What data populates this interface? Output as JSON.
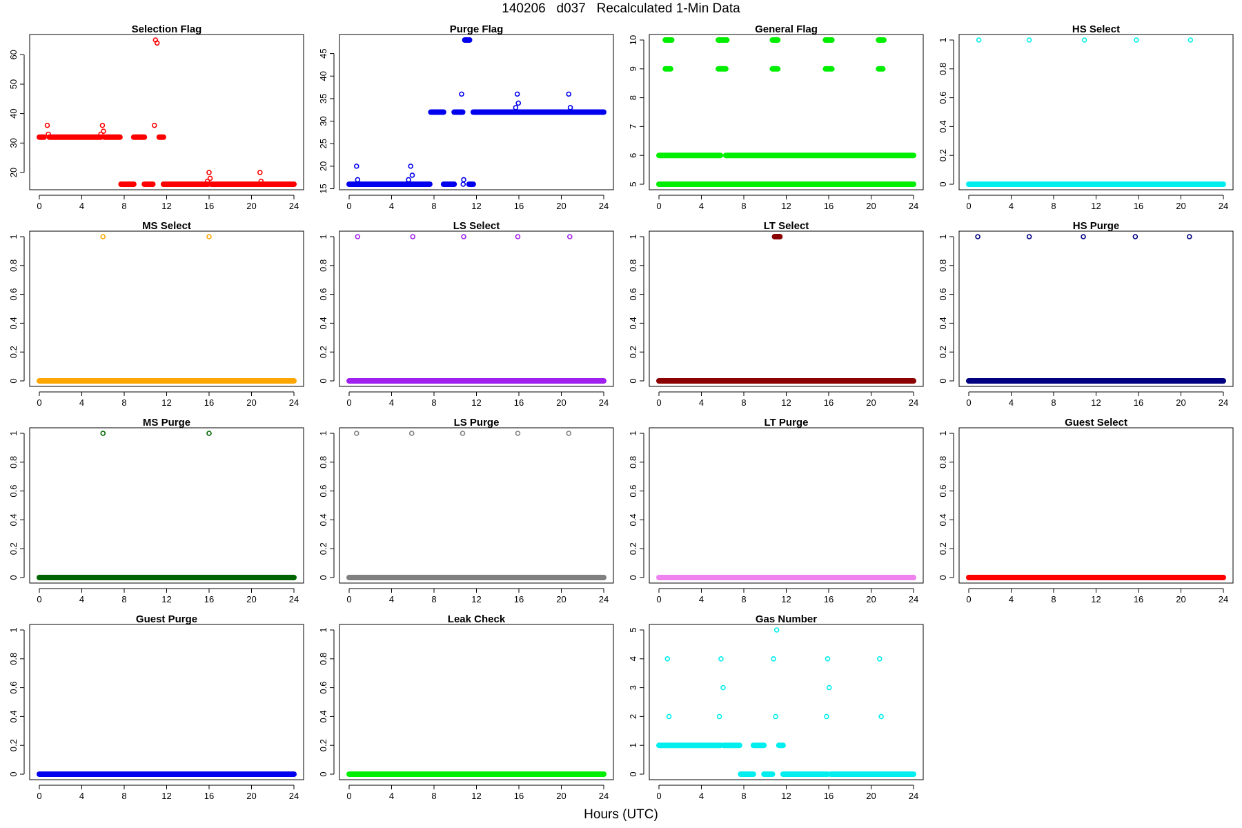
{
  "figure": {
    "title": "140206   d037   Recalculated 1-Min Data",
    "xlabel": "Hours (UTC)"
  },
  "chart_data": [
    {
      "type": "scatter",
      "title": "Selection Flag",
      "color": "#ff0000",
      "xlim": [
        0,
        24
      ],
      "ylim": [
        16,
        65
      ],
      "xticks": [
        0,
        4,
        8,
        12,
        16,
        20,
        24
      ],
      "yticks": [
        20,
        30,
        40,
        50,
        60
      ],
      "segments": [
        {
          "x": [
            0,
            0.45
          ],
          "y": 32
        },
        {
          "x": [
            0.95,
            5.8
          ],
          "y": 32
        },
        {
          "x": [
            6.15,
            7.6
          ],
          "y": 32
        },
        {
          "x": [
            7.7,
            8.9
          ],
          "y": 16
        },
        {
          "x": [
            8.9,
            9.9
          ],
          "y": 32
        },
        {
          "x": [
            9.9,
            10.7
          ],
          "y": 16
        },
        {
          "x": [
            11.3,
            11.7
          ],
          "y": 32
        },
        {
          "x": [
            11.7,
            15.9
          ],
          "y": 16
        },
        {
          "x": [
            16.2,
            24
          ],
          "y": 16
        }
      ],
      "points": [
        {
          "x": 0.75,
          "y": 36
        },
        {
          "x": 0.85,
          "y": 33
        },
        {
          "x": 5.8,
          "y": 33
        },
        {
          "x": 5.95,
          "y": 36
        },
        {
          "x": 6.05,
          "y": 34
        },
        {
          "x": 10.85,
          "y": 36
        },
        {
          "x": 10.95,
          "y": 65
        },
        {
          "x": 11.1,
          "y": 64
        },
        {
          "x": 15.85,
          "y": 17
        },
        {
          "x": 16,
          "y": 20
        },
        {
          "x": 16.1,
          "y": 18
        },
        {
          "x": 20.8,
          "y": 20
        },
        {
          "x": 20.9,
          "y": 17
        }
      ]
    },
    {
      "type": "scatter",
      "title": "Purge Flag",
      "color": "#0000ee",
      "xlim": [
        0,
        24
      ],
      "ylim": [
        16,
        48
      ],
      "xticks": [
        0,
        4,
        8,
        12,
        16,
        20,
        24
      ],
      "yticks": [
        15,
        20,
        25,
        30,
        35,
        40,
        45
      ],
      "segments": [
        {
          "x": [
            0,
            7.6
          ],
          "y": 16
        },
        {
          "x": [
            7.7,
            8.9
          ],
          "y": 32
        },
        {
          "x": [
            8.9,
            9.9
          ],
          "y": 16
        },
        {
          "x": [
            9.9,
            10.7
          ],
          "y": 32
        },
        {
          "x": [
            10.9,
            11.35
          ],
          "y": 48
        },
        {
          "x": [
            11.3,
            11.7
          ],
          "y": 16
        },
        {
          "x": [
            11.7,
            24
          ],
          "y": 32
        }
      ],
      "points": [
        {
          "x": 0.7,
          "y": 20
        },
        {
          "x": 0.8,
          "y": 17
        },
        {
          "x": 5.6,
          "y": 17
        },
        {
          "x": 5.8,
          "y": 20
        },
        {
          "x": 5.95,
          "y": 18
        },
        {
          "x": 10.6,
          "y": 36
        },
        {
          "x": 10.8,
          "y": 17
        },
        {
          "x": 10.75,
          "y": 16
        },
        {
          "x": 15.7,
          "y": 33
        },
        {
          "x": 15.85,
          "y": 36
        },
        {
          "x": 15.95,
          "y": 34
        },
        {
          "x": 20.7,
          "y": 36
        },
        {
          "x": 20.85,
          "y": 33
        }
      ]
    },
    {
      "type": "scatter",
      "title": "General Flag",
      "color": "#00ee00",
      "xlim": [
        0,
        24
      ],
      "ylim": [
        5,
        10
      ],
      "xticks": [
        0,
        4,
        8,
        12,
        16,
        20,
        24
      ],
      "yticks": [
        5,
        6,
        7,
        8,
        9,
        10
      ],
      "segments": [
        {
          "x": [
            0,
            5.8
          ],
          "y": 6
        },
        {
          "x": [
            6.3,
            24
          ],
          "y": 6
        },
        {
          "x": [
            0,
            24
          ],
          "y": 5
        },
        {
          "x": [
            0.6,
            1.2
          ],
          "y": 10
        },
        {
          "x": [
            5.6,
            6.4
          ],
          "y": 10
        },
        {
          "x": [
            10.7,
            11.2
          ],
          "y": 10
        },
        {
          "x": [
            15.7,
            16.3
          ],
          "y": 10
        },
        {
          "x": [
            20.7,
            21.2
          ],
          "y": 10
        },
        {
          "x": [
            0.6,
            1.1
          ],
          "y": 9
        },
        {
          "x": [
            5.6,
            6.3
          ],
          "y": 9
        },
        {
          "x": [
            10.7,
            11.2
          ],
          "y": 9
        },
        {
          "x": [
            15.7,
            16.3
          ],
          "y": 9
        },
        {
          "x": [
            20.7,
            21.1
          ],
          "y": 9
        }
      ],
      "points": []
    },
    {
      "type": "scatter",
      "title": "HS Select",
      "color": "#00eeee",
      "xlim": [
        0,
        24
      ],
      "ylim": [
        0,
        1
      ],
      "xticks": [
        0,
        4,
        8,
        12,
        16,
        20,
        24
      ],
      "yticks": [
        0,
        0.2,
        0.4,
        0.6,
        0.8,
        1
      ],
      "segments": [
        {
          "x": [
            0,
            24
          ],
          "y": 0
        }
      ],
      "points": [
        {
          "x": 0.95,
          "y": 1
        },
        {
          "x": 5.7,
          "y": 1
        },
        {
          "x": 10.9,
          "y": 1
        },
        {
          "x": 15.8,
          "y": 1
        },
        {
          "x": 20.9,
          "y": 1
        }
      ]
    },
    {
      "type": "scatter",
      "title": "MS Select",
      "color": "#ffa500",
      "xlim": [
        0,
        24
      ],
      "ylim": [
        0,
        1
      ],
      "xticks": [
        0,
        4,
        8,
        12,
        16,
        20,
        24
      ],
      "yticks": [
        0,
        0.2,
        0.4,
        0.6,
        0.8,
        1
      ],
      "segments": [
        {
          "x": [
            0,
            24
          ],
          "y": 0
        }
      ],
      "points": [
        {
          "x": 6,
          "y": 1
        },
        {
          "x": 16,
          "y": 1
        }
      ]
    },
    {
      "type": "scatter",
      "title": "LS Select",
      "color": "#a020f0",
      "xlim": [
        0,
        24
      ],
      "ylim": [
        0,
        1
      ],
      "xticks": [
        0,
        4,
        8,
        12,
        16,
        20,
        24
      ],
      "yticks": [
        0,
        0.2,
        0.4,
        0.6,
        0.8,
        1
      ],
      "segments": [
        {
          "x": [
            0,
            24
          ],
          "y": 0
        }
      ],
      "points": [
        {
          "x": 0.8,
          "y": 1
        },
        {
          "x": 6,
          "y": 1
        },
        {
          "x": 10.8,
          "y": 1
        },
        {
          "x": 15.9,
          "y": 1
        },
        {
          "x": 20.8,
          "y": 1
        }
      ]
    },
    {
      "type": "scatter",
      "title": "LT Select",
      "color": "#8b0000",
      "xlim": [
        0,
        24
      ],
      "ylim": [
        0,
        1
      ],
      "xticks": [
        0,
        4,
        8,
        12,
        16,
        20,
        24
      ],
      "yticks": [
        0,
        0.2,
        0.4,
        0.6,
        0.8,
        1
      ],
      "segments": [
        {
          "x": [
            0,
            24
          ],
          "y": 0
        },
        {
          "x": [
            10.9,
            11.4
          ],
          "y": 1
        }
      ],
      "points": []
    },
    {
      "type": "scatter",
      "title": "HS Purge",
      "color": "#000080",
      "xlim": [
        0,
        24
      ],
      "ylim": [
        0,
        1
      ],
      "xticks": [
        0,
        4,
        8,
        12,
        16,
        20,
        24
      ],
      "yticks": [
        0,
        0.2,
        0.4,
        0.6,
        0.8,
        1
      ],
      "segments": [
        {
          "x": [
            0,
            24
          ],
          "y": 0
        }
      ],
      "points": [
        {
          "x": 0.85,
          "y": 1
        },
        {
          "x": 5.7,
          "y": 1
        },
        {
          "x": 10.8,
          "y": 1
        },
        {
          "x": 15.7,
          "y": 1
        },
        {
          "x": 20.8,
          "y": 1
        }
      ]
    },
    {
      "type": "scatter",
      "title": "MS Purge",
      "color": "#006400",
      "xlim": [
        0,
        24
      ],
      "ylim": [
        0,
        1
      ],
      "xticks": [
        0,
        4,
        8,
        12,
        16,
        20,
        24
      ],
      "yticks": [
        0,
        0.2,
        0.4,
        0.6,
        0.8,
        1
      ],
      "segments": [
        {
          "x": [
            0,
            24
          ],
          "y": 0
        }
      ],
      "points": [
        {
          "x": 6,
          "y": 1
        },
        {
          "x": 16,
          "y": 1
        }
      ]
    },
    {
      "type": "scatter",
      "title": "LS Purge",
      "color": "#808080",
      "xlim": [
        0,
        24
      ],
      "ylim": [
        0,
        1
      ],
      "xticks": [
        0,
        4,
        8,
        12,
        16,
        20,
        24
      ],
      "yticks": [
        0,
        0.2,
        0.4,
        0.6,
        0.8,
        1
      ],
      "segments": [
        {
          "x": [
            0,
            24
          ],
          "y": 0
        }
      ],
      "points": [
        {
          "x": 0.7,
          "y": 1
        },
        {
          "x": 5.9,
          "y": 1
        },
        {
          "x": 10.7,
          "y": 1
        },
        {
          "x": 15.9,
          "y": 1
        },
        {
          "x": 20.7,
          "y": 1
        }
      ]
    },
    {
      "type": "scatter",
      "title": "LT Purge",
      "color": "#ee82ee",
      "xlim": [
        0,
        24
      ],
      "ylim": [
        0,
        1
      ],
      "xticks": [
        0,
        4,
        8,
        12,
        16,
        20,
        24
      ],
      "yticks": [
        0,
        0.2,
        0.4,
        0.6,
        0.8,
        1
      ],
      "segments": [
        {
          "x": [
            0,
            24
          ],
          "y": 0
        }
      ],
      "points": []
    },
    {
      "type": "scatter",
      "title": "Guest Select",
      "color": "#ff0000",
      "xlim": [
        0,
        24
      ],
      "ylim": [
        0,
        1
      ],
      "xticks": [
        0,
        4,
        8,
        12,
        16,
        20,
        24
      ],
      "yticks": [
        0,
        0.2,
        0.4,
        0.6,
        0.8,
        1
      ],
      "segments": [
        {
          "x": [
            0,
            24
          ],
          "y": 0
        }
      ],
      "points": []
    },
    {
      "type": "scatter",
      "title": "Guest Purge",
      "color": "#0000ee",
      "xlim": [
        0,
        24
      ],
      "ylim": [
        0,
        1
      ],
      "xticks": [
        0,
        4,
        8,
        12,
        16,
        20,
        24
      ],
      "yticks": [
        0,
        0.2,
        0.4,
        0.6,
        0.8,
        1
      ],
      "segments": [
        {
          "x": [
            0,
            24
          ],
          "y": 0
        }
      ],
      "points": []
    },
    {
      "type": "scatter",
      "title": "Leak Check",
      "color": "#00ee00",
      "xlim": [
        0,
        24
      ],
      "ylim": [
        0,
        1
      ],
      "xticks": [
        0,
        4,
        8,
        12,
        16,
        20,
        24
      ],
      "yticks": [
        0,
        0.2,
        0.4,
        0.6,
        0.8,
        1
      ],
      "segments": [
        {
          "x": [
            0,
            24
          ],
          "y": 0
        }
      ],
      "points": []
    },
    {
      "type": "scatter",
      "title": "Gas Number",
      "color": "#00eeee",
      "xlim": [
        0,
        24
      ],
      "ylim": [
        0,
        5
      ],
      "xticks": [
        0,
        4,
        8,
        12,
        16,
        20,
        24
      ],
      "yticks": [
        0,
        1,
        2,
        3,
        4,
        5
      ],
      "segments": [
        {
          "x": [
            0,
            5.8
          ],
          "y": 1
        },
        {
          "x": [
            6.1,
            7.6
          ],
          "y": 1
        },
        {
          "x": [
            7.7,
            8.9
          ],
          "y": 0
        },
        {
          "x": [
            8.9,
            9.9
          ],
          "y": 1
        },
        {
          "x": [
            9.9,
            10.7
          ],
          "y": 0
        },
        {
          "x": [
            11.3,
            11.7
          ],
          "y": 1
        },
        {
          "x": [
            11.7,
            15.9
          ],
          "y": 0
        },
        {
          "x": [
            16.2,
            24
          ],
          "y": 0
        }
      ],
      "points": [
        {
          "x": 0.8,
          "y": 4
        },
        {
          "x": 0.95,
          "y": 2
        },
        {
          "x": 5.7,
          "y": 2
        },
        {
          "x": 5.85,
          "y": 4
        },
        {
          "x": 6.05,
          "y": 3
        },
        {
          "x": 10.8,
          "y": 4
        },
        {
          "x": 11.0,
          "y": 2
        },
        {
          "x": 11.1,
          "y": 5
        },
        {
          "x": 15.8,
          "y": 2
        },
        {
          "x": 15.9,
          "y": 4
        },
        {
          "x": 16.05,
          "y": 3
        },
        {
          "x": 20.8,
          "y": 4
        },
        {
          "x": 20.95,
          "y": 2
        }
      ]
    }
  ]
}
